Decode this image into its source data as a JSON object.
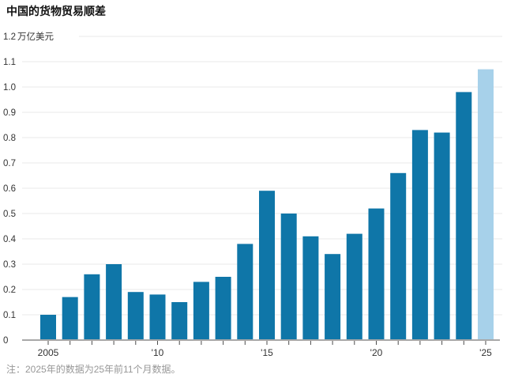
{
  "meta": {
    "app": "news-chart",
    "language": "zh-CN"
  },
  "colors": {
    "bar": "#0f76a8",
    "bar_highlight": "#a7d1ea",
    "grid_line": "#eaeaea",
    "axis_line": "#a8a8a8",
    "tick_mark": "#4d4d4d",
    "title_text": "#111111",
    "axis_text": "#333333",
    "note_text": "#979797",
    "background": "#ffffff"
  },
  "chart_data": {
    "type": "bar",
    "title": "中国的货物贸易顺差",
    "unit_label": "万亿美元",
    "ylabel": "万亿美元",
    "xlabel": "",
    "note": "注：2025年的数据为25年前11个月数据。",
    "grid": true,
    "legend_position": "none",
    "ylim": [
      0,
      1.2
    ],
    "y_ticks": [
      0,
      0.1,
      0.2,
      0.3,
      0.4,
      0.5,
      0.6,
      0.7,
      0.8,
      0.9,
      1.0,
      1.1,
      1.2
    ],
    "categories": [
      2005,
      2006,
      2007,
      2008,
      2009,
      2010,
      2011,
      2012,
      2013,
      2014,
      2015,
      2016,
      2017,
      2018,
      2019,
      2020,
      2021,
      2022,
      2023,
      2024,
      2025
    ],
    "values": [
      0.1,
      0.17,
      0.26,
      0.3,
      0.19,
      0.18,
      0.15,
      0.23,
      0.25,
      0.38,
      0.59,
      0.5,
      0.41,
      0.34,
      0.42,
      0.52,
      0.66,
      0.83,
      0.82,
      0.98,
      1.07
    ],
    "highlighted_category": 2025,
    "x_ticks": [
      {
        "index": 0,
        "label": "2005"
      },
      {
        "index": 5,
        "label": "'10"
      },
      {
        "index": 10,
        "label": "'15"
      },
      {
        "index": 15,
        "label": "'20"
      },
      {
        "index": 20,
        "label": "'25"
      }
    ]
  }
}
